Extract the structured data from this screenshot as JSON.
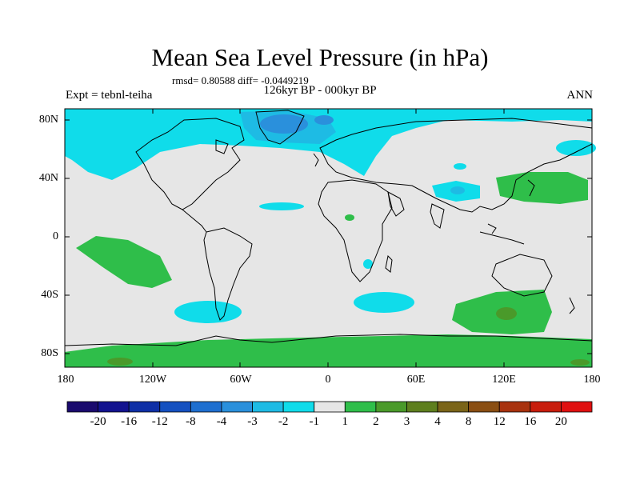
{
  "title": "Mean Sea Level Pressure (in hPa)",
  "stats": "rmsd= 0.80588 diff= -0.0449219",
  "period": "126kyr BP - 000kyr BP",
  "experiment": "Expt = tebnl-teiha",
  "season": "ANN",
  "lat_labels": [
    "80N",
    "40N",
    "0",
    "40S",
    "80S"
  ],
  "lon_labels": [
    "180",
    "120W",
    "60W",
    "0",
    "60E",
    "120E",
    "180"
  ],
  "colorbar": {
    "labels": [
      "-20",
      "-16",
      "-12",
      "-8",
      "-4",
      "-3",
      "-2",
      "-1",
      "1",
      "2",
      "3",
      "4",
      "8",
      "12",
      "16",
      "20"
    ],
    "colors": [
      "#1a0a6e",
      "#12128f",
      "#0e2fa6",
      "#1450c0",
      "#1e6fd0",
      "#2a90dc",
      "#1ebbe4",
      "#10dcea",
      "#e6e6e6",
      "#2fbe4a",
      "#4a9a2a",
      "#5e7f1e",
      "#7a6418",
      "#8a4e12",
      "#a8320e",
      "#c81c0c",
      "#e01010"
    ]
  },
  "colors": {
    "land_bg": "#e6e6e6",
    "coast": "#000000"
  }
}
